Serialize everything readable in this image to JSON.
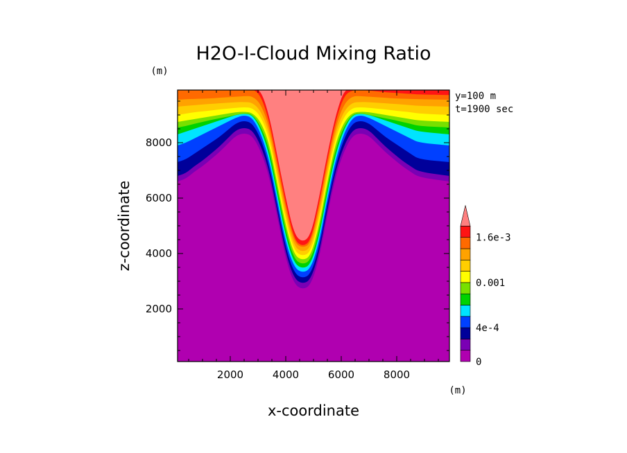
{
  "chart_data": {
    "type": "heatmap",
    "title": "H2O-I-Cloud Mixing Ratio",
    "xlabel": "x-coordinate",
    "ylabel": "z-coordinate",
    "x_unit": "(m)",
    "y_unit": "(m)",
    "annotations": [
      "y=100 m",
      "t=1900 sec"
    ],
    "xlim": [
      100,
      9900
    ],
    "ylim": [
      100,
      9900
    ],
    "x_ticks": [
      2000,
      4000,
      6000,
      8000
    ],
    "y_ticks": [
      2000,
      4000,
      6000,
      8000
    ],
    "x_tick_labels": [
      "2000",
      "4000",
      "6000",
      "8000"
    ],
    "y_tick_labels": [
      "2000",
      "4000",
      "6000",
      "8000"
    ],
    "colorbar": {
      "colors": [
        "#b000b0",
        "#7a00b4",
        "#00009a",
        "#0040ff",
        "#00e4ff",
        "#00d200",
        "#78e000",
        "#ffff00",
        "#ffce00",
        "#ffa200",
        "#ff6a00",
        "#ff1414"
      ],
      "extend_color": "#ff8080",
      "tick_labels": [
        {
          "level": 0,
          "label": "0"
        },
        {
          "level": 3,
          "label": "4e-4"
        },
        {
          "level": 7,
          "label": "0.001"
        },
        {
          "level": 11,
          "label": "1.6e-3"
        }
      ]
    },
    "contour_levels": [
      {
        "level": 1,
        "color": "#7a00b4",
        "z_edge": [
          6600,
          6700,
          6950,
          7150,
          7400,
          7650,
          7950,
          8250,
          8350,
          8250,
          7700,
          6800,
          5300,
          3800,
          2900,
          2700,
          2850,
          3800,
          5400,
          6800,
          7700,
          8250,
          8350,
          8250,
          7950,
          7650,
          7400,
          7150,
          6950,
          6750,
          6600
        ]
      },
      {
        "level": 2,
        "color": "#00009a",
        "z_edge": [
          6800,
          6900,
          7150,
          7350,
          7600,
          7850,
          8150,
          8450,
          8550,
          8450,
          7900,
          7000,
          5500,
          4000,
          3100,
          2900,
          3050,
          4000,
          5600,
          7000,
          7900,
          8450,
          8550,
          8450,
          8150,
          7850,
          7600,
          7350,
          7150,
          6950,
          6800
        ]
      },
      {
        "level": 3,
        "color": "#0040ff",
        "z_edge": [
          7300,
          7400,
          7600,
          7800,
          8000,
          8200,
          8450,
          8700,
          8800,
          8700,
          8150,
          7200,
          5700,
          4200,
          3300,
          3100,
          3250,
          4200,
          5800,
          7200,
          8150,
          8700,
          8800,
          8700,
          8450,
          8200,
          8000,
          7800,
          7600,
          7400,
          7300
        ]
      },
      {
        "level": 4,
        "color": "#00e4ff",
        "z_edge": [
          7900,
          8000,
          8150,
          8300,
          8450,
          8600,
          8750,
          8900,
          9000,
          8900,
          8350,
          7400,
          5900,
          4400,
          3500,
          3300,
          3450,
          4400,
          6000,
          7400,
          8350,
          8900,
          9000,
          8900,
          8750,
          8600,
          8450,
          8300,
          8150,
          8000,
          7900
        ]
      },
      {
        "level": 5,
        "color": "#00d200",
        "z_edge": [
          8300,
          8400,
          8500,
          8600,
          8700,
          8800,
          8900,
          9000,
          9050,
          9000,
          8500,
          7600,
          6100,
          4600,
          3650,
          3450,
          3600,
          4600,
          6200,
          7600,
          8500,
          9000,
          9050,
          9000,
          8900,
          8800,
          8700,
          8600,
          8500,
          8400,
          8300
        ]
      },
      {
        "level": 6,
        "color": "#78e000",
        "z_edge": [
          8550,
          8600,
          8680,
          8750,
          8820,
          8880,
          8940,
          9000,
          9060,
          9020,
          8600,
          7800,
          6300,
          4800,
          3800,
          3600,
          3750,
          4800,
          6400,
          7800,
          8600,
          9020,
          9060,
          9000,
          8940,
          8880,
          8820,
          8750,
          8680,
          8600,
          8550
        ]
      },
      {
        "level": 7,
        "color": "#ffff00",
        "z_edge": [
          8750,
          8800,
          8850,
          8900,
          8950,
          9000,
          9050,
          9100,
          9120,
          9080,
          8750,
          8000,
          6500,
          5000,
          3950,
          3750,
          3900,
          5000,
          6600,
          8000,
          8750,
          9080,
          9120,
          9100,
          9050,
          9000,
          8950,
          8900,
          8850,
          8800,
          8750
        ]
      },
      {
        "level": 8,
        "color": "#ffce00",
        "z_edge": [
          9000,
          9050,
          9100,
          9130,
          9160,
          9200,
          9230,
          9260,
          9280,
          9260,
          8950,
          8200,
          6700,
          5200,
          4100,
          3900,
          4050,
          5200,
          6800,
          8200,
          8950,
          9260,
          9280,
          9260,
          9230,
          9200,
          9160,
          9130,
          9100,
          9050,
          9000
        ]
      },
      {
        "level": 9,
        "color": "#ffa200",
        "z_edge": [
          9300,
          9330,
          9350,
          9380,
          9400,
          9420,
          9440,
          9460,
          9470,
          9450,
          9150,
          8400,
          6900,
          5400,
          4250,
          4050,
          4200,
          5400,
          7000,
          8400,
          9150,
          9450,
          9470,
          9460,
          9440,
          9420,
          9400,
          9380,
          9350,
          9330,
          9300
        ]
      },
      {
        "level": 10,
        "color": "#ff6a00",
        "z_edge": [
          9550,
          9570,
          9580,
          9590,
          9600,
          9620,
          9640,
          9660,
          9680,
          9680,
          9400,
          8600,
          7100,
          5600,
          4400,
          4200,
          4350,
          5600,
          7200,
          8600,
          9400,
          9680,
          9680,
          9660,
          9640,
          9620,
          9600,
          9590,
          9580,
          9570,
          9550
        ]
      },
      {
        "level": 11,
        "color": "#ff1414",
        "z_edge": [
          9950,
          9950,
          9950,
          9950,
          9950,
          9950,
          9950,
          9950,
          9950,
          9950,
          9700,
          8800,
          7300,
          5800,
          4500,
          4250,
          4450,
          5800,
          7400,
          8800,
          9700,
          9900,
          9900,
          9880,
          9850,
          9820,
          9800,
          9780,
          9760,
          9740,
          9720
        ]
      },
      {
        "level": 12,
        "color": "#ff8080",
        "z_edge": [
          9950,
          9950,
          9950,
          9950,
          9950,
          9950,
          9950,
          9950,
          9950,
          9950,
          9900,
          9000,
          7500,
          6000,
          4700,
          4400,
          4650,
          6000,
          7600,
          9000,
          9900,
          9950,
          9950,
          9950,
          9950,
          9950,
          9950,
          9950,
          9950,
          9950,
          9950
        ]
      }
    ],
    "contour_x": [
      100,
      400,
      700,
      1000,
      1300,
      1600,
      1900,
      2200,
      2500,
      2800,
      3100,
      3400,
      3700,
      4000,
      4300,
      4600,
      4900,
      5200,
      5500,
      5800,
      6100,
      6400,
      6700,
      7000,
      7300,
      7600,
      7900,
      8200,
      8500,
      8800,
      9900
    ]
  }
}
